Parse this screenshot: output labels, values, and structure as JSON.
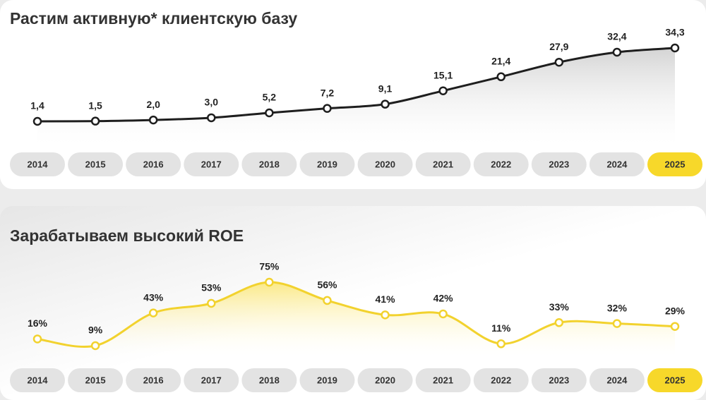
{
  "chart_data": [
    {
      "type": "line",
      "title": "Растим активную* клиентскую базу",
      "categories": [
        "2014",
        "2015",
        "2016",
        "2017",
        "2018",
        "2019",
        "2020",
        "2021",
        "2022",
        "2023",
        "2024",
        "2025"
      ],
      "values": [
        1.4,
        1.5,
        2.0,
        3.0,
        5.2,
        7.2,
        9.1,
        15.1,
        21.4,
        27.9,
        32.4,
        34.3
      ],
      "value_labels": [
        "1,4",
        "1,5",
        "2,0",
        "3,0",
        "5,2",
        "7,2",
        "9,1",
        "15,1",
        "21,4",
        "27,9",
        "32,4",
        "34,3"
      ],
      "color": "#1e1e1e",
      "area_color": "#d6d6d6",
      "highlight_index": 11,
      "highlight_color": "#f7d82a"
    },
    {
      "type": "line",
      "title": "Зарабатываем высокий ROE",
      "categories": [
        "2014",
        "2015",
        "2016",
        "2017",
        "2018",
        "2019",
        "2020",
        "2021",
        "2022",
        "2023",
        "2024",
        "2025"
      ],
      "values": [
        16,
        9,
        43,
        53,
        75,
        56,
        41,
        42,
        11,
        33,
        32,
        29
      ],
      "value_labels": [
        "16%",
        "9%",
        "43%",
        "53%",
        "75%",
        "56%",
        "41%",
        "42%",
        "11%",
        "33%",
        "32%",
        "29%"
      ],
      "color": "#f2d22e",
      "area_color": "#fbe97a",
      "highlight_index": 11,
      "highlight_color": "#f7d82a"
    }
  ]
}
